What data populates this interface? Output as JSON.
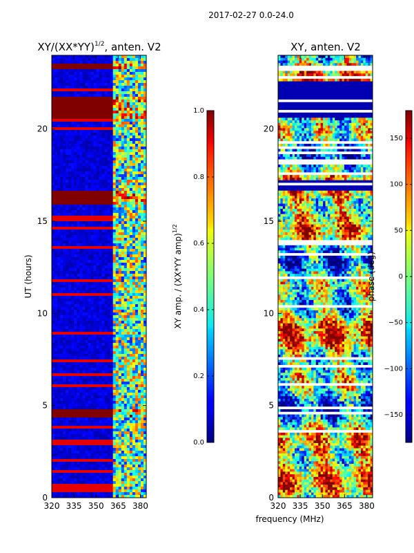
{
  "suptitle": "2017-02-27 0.0-24.0",
  "shared_xlabel": "frequency (MHz)",
  "chart_data": [
    {
      "type": "heatmap",
      "title_main": "XY/(XX*YY)",
      "title_sup": "1/2",
      "title_rest": ", anten. V2",
      "xlabel": "",
      "ylabel": "UT (hours)",
      "xlim": [
        320,
        384
      ],
      "ylim": [
        0,
        24
      ],
      "xticks": [
        320,
        335,
        350,
        365,
        380
      ],
      "yticks": [
        0,
        5,
        10,
        15,
        20
      ],
      "bright_band_start": 361,
      "saturated_bands_ut": [
        [
          23.3,
          23.6
        ],
        [
          20.6,
          21.8
        ],
        [
          15.9,
          16.6
        ],
        [
          4.3,
          4.85
        ]
      ],
      "colorbar": {
        "label_main": "XY amp. / (XX*YY amp)",
        "label_sup": "1/2",
        "range": [
          0.0,
          1.0
        ],
        "ticks": [
          "0.0",
          "0.2",
          "0.4",
          "0.6",
          "0.8",
          "1.0"
        ],
        "colormap": "jet"
      }
    },
    {
      "type": "heatmap",
      "title": "XY, anten. V2",
      "xlabel": "",
      "ylabel": "",
      "xlim": [
        320,
        384
      ],
      "ylim": [
        0,
        24
      ],
      "xticks": [
        320,
        335,
        350,
        365,
        380
      ],
      "yticks": [
        0,
        5,
        10,
        15,
        20
      ],
      "colorbar": {
        "label": "phase (deg)",
        "range": [
          -180,
          180
        ],
        "ticks": [
          "−150",
          "−100",
          "−50",
          "0",
          "50",
          "100",
          "150"
        ],
        "tick_values": [
          -150,
          -100,
          -50,
          0,
          50,
          100,
          150
        ],
        "colormap": "jet"
      }
    }
  ]
}
